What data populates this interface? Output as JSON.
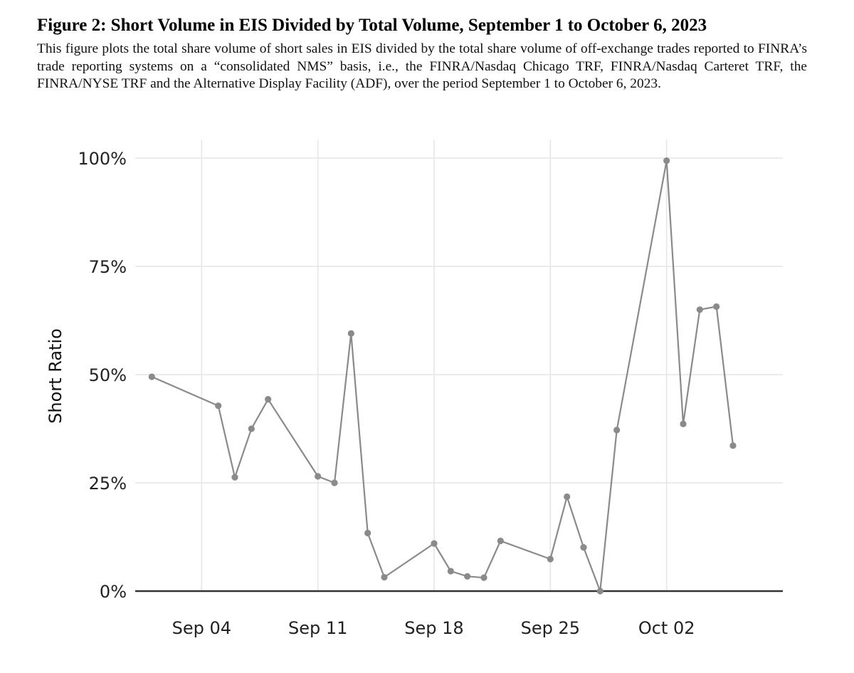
{
  "figure": {
    "title": "Figure 2: Short Volume in EIS Divided by Total Volume, September 1 to October 6, 2023",
    "caption": "This figure plots the total share volume of short sales in EIS divided by the total share volume of off-exchange trades reported to FINRA’s trade reporting systems on a “consolidated NMS” basis, i.e., the FINRA/Nasdaq Chicago TRF, FINRA/Nasdaq Carteret TRF, the FINRA/NYSE TRF and the Alternative Display Facility (ADF), over the period September 1 to October 6, 2023."
  },
  "chart_data": {
    "type": "line",
    "title": "",
    "xlabel": "",
    "ylabel": "Short Ratio",
    "x_type": "date",
    "xlim": [
      "2023-08-31",
      "2023-10-09"
    ],
    "ylim": [
      0,
      1.03
    ],
    "x_ticks": [
      {
        "date": "2023-09-04",
        "label": "Sep 04"
      },
      {
        "date": "2023-09-11",
        "label": "Sep 11"
      },
      {
        "date": "2023-09-18",
        "label": "Sep 18"
      },
      {
        "date": "2023-09-25",
        "label": "Sep 25"
      },
      {
        "date": "2023-10-02",
        "label": "Oct 02"
      }
    ],
    "y_ticks": [
      {
        "value": 0,
        "label": "0%"
      },
      {
        "value": 0.25,
        "label": "25%"
      },
      {
        "value": 0.5,
        "label": "50%"
      },
      {
        "value": 0.75,
        "label": "75%"
      },
      {
        "value": 1.0,
        "label": "100%"
      }
    ],
    "grid": true,
    "legend": false,
    "series": [
      {
        "color": "#8a8a8a",
        "points": [
          {
            "x": "2023-09-01",
            "y": 0.495
          },
          {
            "x": "2023-09-05",
            "y": 0.428
          },
          {
            "x": "2023-09-06",
            "y": 0.263
          },
          {
            "x": "2023-09-07",
            "y": 0.375
          },
          {
            "x": "2023-09-08",
            "y": 0.443
          },
          {
            "x": "2023-09-11",
            "y": 0.265
          },
          {
            "x": "2023-09-12",
            "y": 0.25
          },
          {
            "x": "2023-09-13",
            "y": 0.595
          },
          {
            "x": "2023-09-14",
            "y": 0.134
          },
          {
            "x": "2023-09-15",
            "y": 0.032
          },
          {
            "x": "2023-09-18",
            "y": 0.11
          },
          {
            "x": "2023-09-19",
            "y": 0.046
          },
          {
            "x": "2023-09-20",
            "y": 0.034
          },
          {
            "x": "2023-09-21",
            "y": 0.031
          },
          {
            "x": "2023-09-22",
            "y": 0.116
          },
          {
            "x": "2023-09-25",
            "y": 0.074
          },
          {
            "x": "2023-09-26",
            "y": 0.218
          },
          {
            "x": "2023-09-27",
            "y": 0.101
          },
          {
            "x": "2023-09-28",
            "y": 0.0
          },
          {
            "x": "2023-09-29",
            "y": 0.372
          },
          {
            "x": "2023-10-02",
            "y": 0.994
          },
          {
            "x": "2023-10-03",
            "y": 0.386
          },
          {
            "x": "2023-10-04",
            "y": 0.65
          },
          {
            "x": "2023-10-05",
            "y": 0.657
          },
          {
            "x": "2023-10-06",
            "y": 0.336
          }
        ]
      }
    ],
    "colors": {
      "grid": "#e6e6e6",
      "baseline": "#333333",
      "line": "#8a8a8a"
    }
  }
}
